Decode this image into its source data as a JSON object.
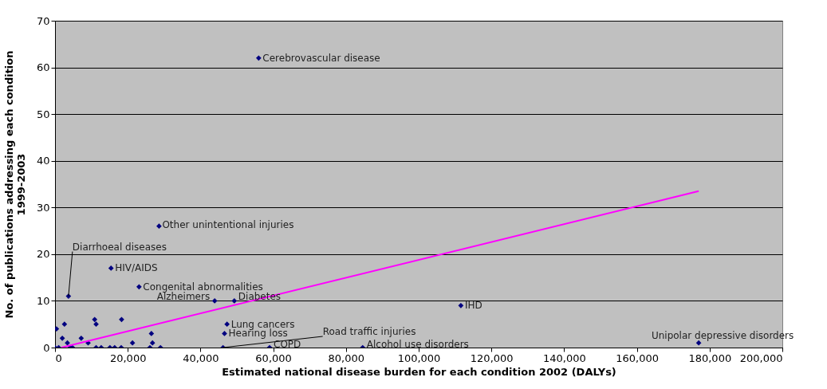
{
  "chart_data": {
    "type": "scatter",
    "xlabel": "Estimated national disease burden for each condition 2002 (DALYs)",
    "ylabel": "No. of publications addressing each condition\n1999-2003",
    "xlim": [
      0,
      200000
    ],
    "xticks": [
      0,
      {
        "value": 20000,
        "label": "20,000"
      },
      {
        "value": 40000,
        "label": "40,000"
      },
      {
        "value": 60000,
        "label": "60,000"
      },
      {
        "value": 80000,
        "label": "80,000"
      },
      {
        "value": 100000,
        "label": "100,000"
      },
      {
        "value": 120000,
        "label": "120,000"
      },
      {
        "value": 140000,
        "label": "140,000"
      },
      {
        "value": 160000,
        "label": "160,000"
      },
      {
        "value": 180000,
        "label": "180,000"
      },
      {
        "value": 200000,
        "label": "200,000"
      }
    ],
    "ylim": [
      0,
      70
    ],
    "yticks": [
      0,
      10,
      20,
      30,
      40,
      50,
      60,
      70
    ],
    "grid": "y",
    "series": [
      {
        "color": "#000080",
        "marker": "diamond",
        "x": [
          0,
          1000,
          4200,
          4800,
          11300,
          12700,
          15100,
          16400,
          18200,
          26100,
          29000,
          400,
          2600,
          2000,
          3400,
          7200,
          9100,
          10900,
          11300,
          18300,
          21300,
          26500,
          26800,
          3700,
          15400,
          23100,
          28600,
          43900,
          49300,
          47300,
          46600,
          46200,
          59000,
          84600,
          111600,
          177000,
          56000
        ],
        "values": [
          0,
          0,
          0,
          0,
          0,
          0,
          0,
          0,
          0,
          0,
          0,
          4,
          5,
          2,
          1,
          2,
          1,
          6,
          5,
          6,
          1,
          3,
          1,
          11,
          17,
          13,
          26,
          10,
          10,
          5,
          3,
          0,
          0,
          0,
          9,
          1,
          62
        ]
      },
      {
        "type": "line",
        "color": "#ff00ff",
        "line_style": "solid",
        "x": [
          1750,
          177000
        ],
        "values": [
          0,
          33.5
        ]
      }
    ],
    "annotations": [
      {
        "text": "Cerebrovascular disease",
        "x": 56000,
        "y": 62
      },
      {
        "text": "Other unintentional injuries",
        "x": 28600,
        "y": 26
      },
      {
        "text": "Diarrhoeal diseases",
        "x": 3700,
        "y": 11
      },
      {
        "text": "HIV/AIDS",
        "x": 15400,
        "y": 17
      },
      {
        "text": "Congenital abnormalities",
        "x": 23100,
        "y": 13
      },
      {
        "text": "Alzheimers",
        "x": 43900,
        "y": 10
      },
      {
        "text": "Diabetes",
        "x": 49300,
        "y": 10
      },
      {
        "text": "Lung cancers",
        "x": 47300,
        "y": 5
      },
      {
        "text": "Hearing loss",
        "x": 46600,
        "y": 3
      },
      {
        "text": "Road traffic injuries",
        "x": 46200,
        "y": 0
      },
      {
        "text": "COPD",
        "x": 59000,
        "y": 0
      },
      {
        "text": "Alcohol use disorders",
        "x": 84600,
        "y": 0
      },
      {
        "text": "IHD",
        "x": 111600,
        "y": 9
      },
      {
        "text": "Unipolar depressive disorders",
        "x": 177000,
        "y": 1
      }
    ]
  }
}
